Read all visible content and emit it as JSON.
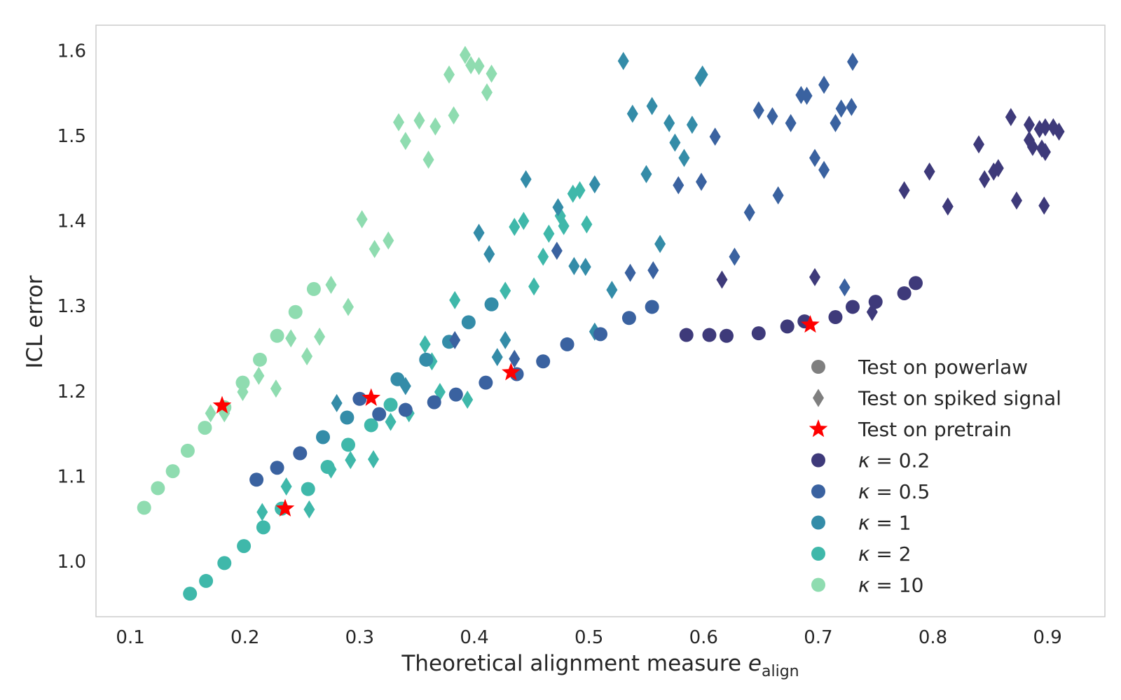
{
  "chart_data": {
    "type": "scatter",
    "xlabel": "Theoretical alignment measure ",
    "xlabel_math": "e",
    "xlabel_sub": "align",
    "ylabel": "ICL error",
    "xlim": [
      0.07,
      0.95
    ],
    "ylim": [
      0.935,
      1.63
    ],
    "xticks": [
      "0.1",
      "0.2",
      "0.3",
      "0.4",
      "0.5",
      "0.6",
      "0.7",
      "0.8",
      "0.9"
    ],
    "yticks": [
      "1.0",
      "1.1",
      "1.2",
      "1.3",
      "1.4",
      "1.5",
      "1.6"
    ],
    "grid": false,
    "legend_position": "lower-right",
    "colors": {
      "k0.2": "#3e3a7a",
      "k0.5": "#3a62a0",
      "k1": "#348ca8",
      "k2": "#3fb8aa",
      "k10": "#8fdcb0",
      "pretrain": "#ff0000",
      "marker_key": "#7f7f7f"
    },
    "legend": [
      {
        "label": "Test on powerlaw",
        "marker": "circle",
        "color_key": "marker_key"
      },
      {
        "label": "Test on spiked signal",
        "marker": "diamond",
        "color_key": "marker_key"
      },
      {
        "label": "Test on pretrain",
        "marker": "star",
        "color_key": "pretrain"
      },
      {
        "prefix": "κ = ",
        "value": " 0.2",
        "marker": "circle",
        "color_key": "k0.2"
      },
      {
        "prefix": "κ = ",
        "value": " 0.5",
        "marker": "circle",
        "color_key": "k0.5"
      },
      {
        "prefix": "κ = ",
        "value": " 1",
        "marker": "circle",
        "color_key": "k1"
      },
      {
        "prefix": "κ = ",
        "value": " 2",
        "marker": "circle",
        "color_key": "k2"
      },
      {
        "prefix": "κ = ",
        "value": " 10",
        "marker": "circle",
        "color_key": "k10"
      }
    ],
    "series": [
      {
        "kappa": "0.2",
        "color_key": "k0.2",
        "powerlaw": [
          [
            0.585,
            1.266
          ],
          [
            0.605,
            1.266
          ],
          [
            0.62,
            1.265
          ],
          [
            0.648,
            1.268
          ],
          [
            0.673,
            1.276
          ],
          [
            0.688,
            1.282
          ],
          [
            0.715,
            1.287
          ],
          [
            0.73,
            1.299
          ],
          [
            0.75,
            1.305
          ],
          [
            0.775,
            1.315
          ],
          [
            0.785,
            1.327
          ]
        ],
        "spiked": [
          [
            0.868,
            1.522
          ],
          [
            0.884,
            1.513
          ],
          [
            0.893,
            1.508
          ],
          [
            0.898,
            1.51
          ],
          [
            0.905,
            1.51
          ],
          [
            0.91,
            1.505
          ],
          [
            0.884,
            1.495
          ],
          [
            0.887,
            1.487
          ],
          [
            0.895,
            1.485
          ],
          [
            0.898,
            1.481
          ],
          [
            0.84,
            1.49
          ],
          [
            0.845,
            1.449
          ],
          [
            0.853,
            1.458
          ],
          [
            0.857,
            1.462
          ],
          [
            0.797,
            1.458
          ],
          [
            0.775,
            1.436
          ],
          [
            0.813,
            1.417
          ],
          [
            0.873,
            1.424
          ],
          [
            0.897,
            1.418
          ],
          [
            0.697,
            1.334
          ],
          [
            0.616,
            1.331
          ],
          [
            0.747,
            1.293
          ]
        ],
        "pretrain": [
          [
            0.693,
            1.278
          ]
        ]
      },
      {
        "kappa": "0.5",
        "color_key": "k0.5",
        "powerlaw": [
          [
            0.21,
            1.096
          ],
          [
            0.228,
            1.11
          ],
          [
            0.248,
            1.127
          ],
          [
            0.3,
            1.191
          ],
          [
            0.317,
            1.173
          ],
          [
            0.34,
            1.178
          ],
          [
            0.365,
            1.187
          ],
          [
            0.384,
            1.196
          ],
          [
            0.41,
            1.21
          ],
          [
            0.437,
            1.22
          ],
          [
            0.46,
            1.235
          ],
          [
            0.481,
            1.255
          ],
          [
            0.51,
            1.267
          ],
          [
            0.535,
            1.286
          ],
          [
            0.555,
            1.299
          ]
        ],
        "spiked": [
          [
            0.648,
            1.53
          ],
          [
            0.66,
            1.523
          ],
          [
            0.676,
            1.515
          ],
          [
            0.685,
            1.548
          ],
          [
            0.69,
            1.547
          ],
          [
            0.705,
            1.56
          ],
          [
            0.73,
            1.587
          ],
          [
            0.715,
            1.515
          ],
          [
            0.72,
            1.532
          ],
          [
            0.729,
            1.534
          ],
          [
            0.61,
            1.499
          ],
          [
            0.697,
            1.474
          ],
          [
            0.705,
            1.46
          ],
          [
            0.578,
            1.442
          ],
          [
            0.598,
            1.446
          ],
          [
            0.665,
            1.43
          ],
          [
            0.64,
            1.41
          ],
          [
            0.627,
            1.358
          ],
          [
            0.536,
            1.339
          ],
          [
            0.556,
            1.342
          ],
          [
            0.723,
            1.322
          ],
          [
            0.383,
            1.26
          ],
          [
            0.435,
            1.238
          ],
          [
            0.472,
            1.365
          ]
        ],
        "pretrain": [
          [
            0.432,
            1.222
          ]
        ]
      },
      {
        "kappa": "1",
        "color_key": "k1",
        "powerlaw": [
          [
            0.358,
            1.237
          ],
          [
            0.378,
            1.258
          ],
          [
            0.395,
            1.281
          ],
          [
            0.415,
            1.302
          ],
          [
            0.333,
            1.214
          ],
          [
            0.289,
            1.169
          ],
          [
            0.268,
            1.146
          ]
        ],
        "spiked": [
          [
            0.53,
            1.588
          ],
          [
            0.597,
            1.568
          ],
          [
            0.599,
            1.572
          ],
          [
            0.538,
            1.526
          ],
          [
            0.555,
            1.535
          ],
          [
            0.57,
            1.515
          ],
          [
            0.575,
            1.492
          ],
          [
            0.59,
            1.513
          ],
          [
            0.583,
            1.474
          ],
          [
            0.55,
            1.455
          ],
          [
            0.505,
            1.443
          ],
          [
            0.445,
            1.449
          ],
          [
            0.473,
            1.416
          ],
          [
            0.487,
            1.347
          ],
          [
            0.497,
            1.346
          ],
          [
            0.562,
            1.373
          ],
          [
            0.52,
            1.319
          ],
          [
            0.42,
            1.24
          ],
          [
            0.427,
            1.26
          ],
          [
            0.404,
            1.386
          ],
          [
            0.413,
            1.361
          ],
          [
            0.28,
            1.186
          ],
          [
            0.34,
            1.206
          ],
          [
            0.505,
            1.27
          ]
        ],
        "pretrain": [
          [
            0.31,
            1.192
          ]
        ]
      },
      {
        "kappa": "2",
        "color_key": "k2",
        "powerlaw": [
          [
            0.152,
            0.962
          ],
          [
            0.166,
            0.977
          ],
          [
            0.182,
            0.998
          ],
          [
            0.199,
            1.018
          ],
          [
            0.216,
            1.04
          ],
          [
            0.232,
            1.062
          ],
          [
            0.255,
            1.085
          ],
          [
            0.272,
            1.111
          ],
          [
            0.29,
            1.137
          ],
          [
            0.31,
            1.16
          ],
          [
            0.327,
            1.184
          ]
        ],
        "spiked": [
          [
            0.443,
            1.4
          ],
          [
            0.435,
            1.393
          ],
          [
            0.465,
            1.385
          ],
          [
            0.475,
            1.406
          ],
          [
            0.478,
            1.394
          ],
          [
            0.486,
            1.432
          ],
          [
            0.492,
            1.436
          ],
          [
            0.498,
            1.396
          ],
          [
            0.46,
            1.358
          ],
          [
            0.452,
            1.323
          ],
          [
            0.427,
            1.318
          ],
          [
            0.383,
            1.307
          ],
          [
            0.357,
            1.255
          ],
          [
            0.363,
            1.235
          ],
          [
            0.37,
            1.199
          ],
          [
            0.394,
            1.19
          ],
          [
            0.343,
            1.174
          ],
          [
            0.327,
            1.164
          ],
          [
            0.312,
            1.12
          ],
          [
            0.292,
            1.119
          ],
          [
            0.275,
            1.108
          ],
          [
            0.236,
            1.088
          ],
          [
            0.215,
            1.058
          ],
          [
            0.256,
            1.061
          ]
        ],
        "pretrain": [
          [
            0.235,
            1.062
          ]
        ]
      },
      {
        "kappa": "10",
        "color_key": "k10",
        "powerlaw": [
          [
            0.112,
            1.063
          ],
          [
            0.124,
            1.086
          ],
          [
            0.137,
            1.106
          ],
          [
            0.15,
            1.13
          ],
          [
            0.165,
            1.157
          ],
          [
            0.182,
            1.181
          ],
          [
            0.198,
            1.21
          ],
          [
            0.213,
            1.237
          ],
          [
            0.228,
            1.265
          ],
          [
            0.244,
            1.293
          ],
          [
            0.26,
            1.32
          ]
        ],
        "spiked": [
          [
            0.392,
            1.595
          ],
          [
            0.397,
            1.583
          ],
          [
            0.404,
            1.582
          ],
          [
            0.415,
            1.573
          ],
          [
            0.411,
            1.551
          ],
          [
            0.378,
            1.572
          ],
          [
            0.382,
            1.524
          ],
          [
            0.36,
            1.472
          ],
          [
            0.366,
            1.511
          ],
          [
            0.34,
            1.494
          ],
          [
            0.334,
            1.516
          ],
          [
            0.352,
            1.518
          ],
          [
            0.302,
            1.402
          ],
          [
            0.313,
            1.367
          ],
          [
            0.325,
            1.377
          ],
          [
            0.275,
            1.325
          ],
          [
            0.29,
            1.299
          ],
          [
            0.24,
            1.262
          ],
          [
            0.265,
            1.264
          ],
          [
            0.254,
            1.241
          ],
          [
            0.212,
            1.218
          ],
          [
            0.227,
            1.203
          ],
          [
            0.198,
            1.199
          ],
          [
            0.182,
            1.174
          ],
          [
            0.17,
            1.174
          ]
        ],
        "pretrain": [
          [
            0.18,
            1.183
          ]
        ]
      }
    ]
  }
}
